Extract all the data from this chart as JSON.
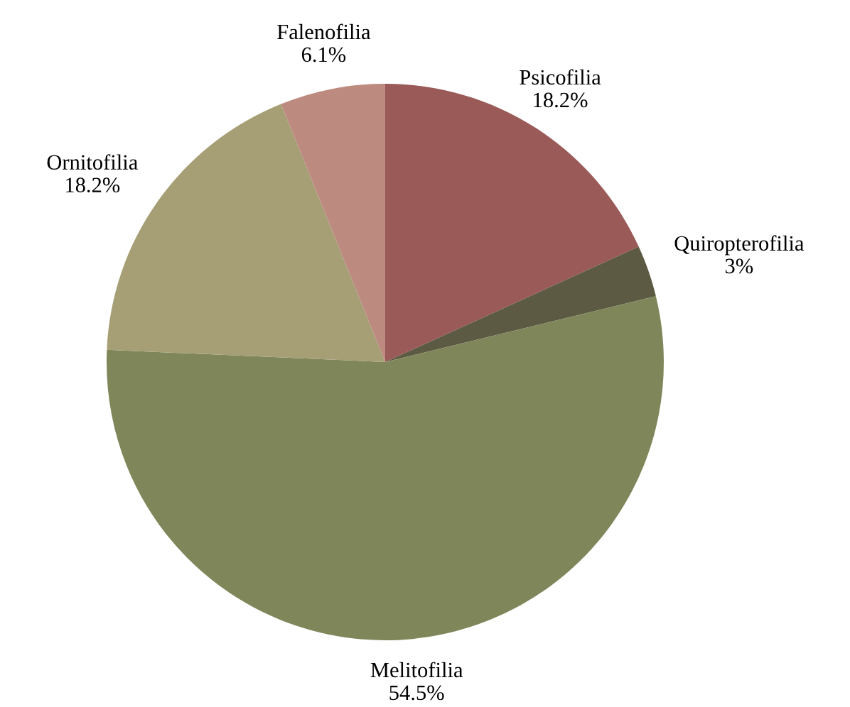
{
  "chart_data": {
    "type": "pie",
    "categories": [
      "Psicofilia",
      "Quiropterofilia",
      "Melitofilia",
      "Ornitofilia",
      "Falenofilia"
    ],
    "values": [
      18.2,
      3,
      54.5,
      18.2,
      6.1
    ],
    "value_labels": [
      "18.2%",
      "3%",
      "54.5%",
      "18.2%",
      "6.1%"
    ],
    "colors": [
      "#9a5a58",
      "#5c5a42",
      "#7f865a",
      "#a69f75",
      "#bd8a80"
    ],
    "legend": false
  }
}
